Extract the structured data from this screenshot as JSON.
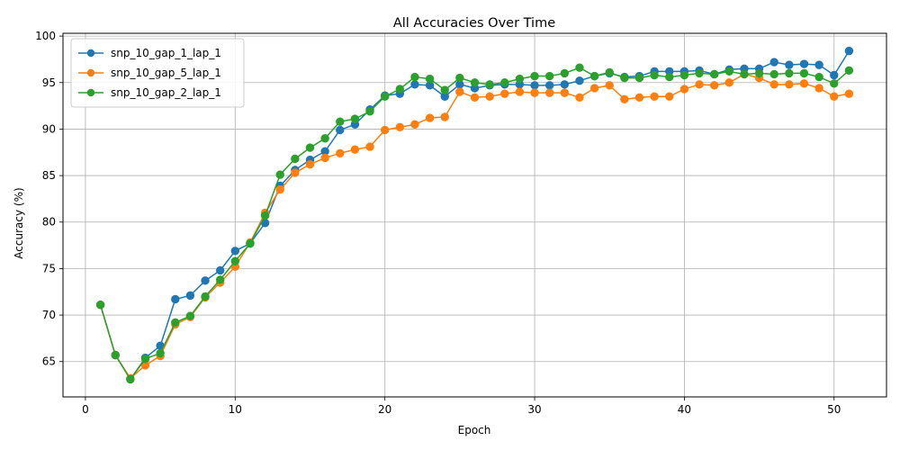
{
  "chart_data": {
    "type": "line",
    "title": "All Accuracies Over Time",
    "xlabel": "Epoch",
    "ylabel": "Accuracy (%)",
    "xlim": [
      -1.5,
      53.5
    ],
    "ylim": [
      61.2,
      100.3
    ],
    "xticks": [
      0,
      10,
      20,
      30,
      40,
      50
    ],
    "yticks": [
      65,
      70,
      75,
      80,
      85,
      90,
      95,
      100
    ],
    "grid": true,
    "legend_position": "top-left",
    "x": [
      1,
      2,
      3,
      4,
      5,
      6,
      7,
      8,
      9,
      10,
      11,
      12,
      13,
      14,
      15,
      16,
      17,
      18,
      19,
      20,
      21,
      22,
      23,
      24,
      25,
      26,
      27,
      28,
      29,
      30,
      31,
      32,
      33,
      34,
      35,
      36,
      37,
      38,
      39,
      40,
      41,
      42,
      43,
      44,
      45,
      46,
      47,
      48,
      49,
      50,
      51
    ],
    "series": [
      {
        "name": "snp_10_gap_1_lap_1",
        "color": "#1f77b4",
        "values": [
          71.1,
          65.7,
          63.1,
          65.4,
          66.7,
          71.7,
          72.1,
          73.7,
          74.8,
          76.9,
          77.7,
          79.9,
          83.9,
          85.6,
          86.7,
          87.6,
          89.9,
          90.5,
          92.1,
          93.6,
          93.8,
          94.8,
          94.7,
          93.5,
          94.8,
          94.4,
          94.7,
          94.8,
          94.8,
          94.7,
          94.7,
          94.8,
          95.2,
          95.7,
          96.0,
          95.6,
          95.7,
          96.2,
          96.2,
          96.2,
          96.3,
          95.9,
          96.4,
          96.5,
          96.5,
          97.2,
          96.9,
          97.0,
          96.9,
          95.8,
          98.4
        ]
      },
      {
        "name": "snp_10_gap_5_lap_1",
        "color": "#ff7f0e",
        "values": [
          71.1,
          65.7,
          63.2,
          64.6,
          65.6,
          69.0,
          69.8,
          71.9,
          73.5,
          75.2,
          77.8,
          81.0,
          83.5,
          85.3,
          86.2,
          86.9,
          87.4,
          87.8,
          88.1,
          89.9,
          90.2,
          90.5,
          91.2,
          91.3,
          94.0,
          93.4,
          93.5,
          93.8,
          94.0,
          93.9,
          93.9,
          93.9,
          93.4,
          94.4,
          94.7,
          93.2,
          93.4,
          93.5,
          93.5,
          94.3,
          94.8,
          94.7,
          95.0,
          95.9,
          95.5,
          94.8,
          94.8,
          94.9,
          94.4,
          93.5,
          93.8
        ]
      },
      {
        "name": "snp_10_gap_2_lap_1",
        "color": "#2ca02c",
        "values": [
          71.1,
          65.7,
          63.1,
          65.3,
          65.9,
          69.2,
          69.9,
          72.0,
          73.8,
          75.8,
          77.7,
          80.7,
          85.1,
          86.8,
          88.0,
          89.0,
          90.8,
          91.1,
          91.9,
          93.5,
          94.3,
          95.6,
          95.4,
          94.2,
          95.5,
          95.0,
          94.8,
          95.0,
          95.4,
          95.7,
          95.7,
          96.0,
          96.6,
          95.7,
          96.1,
          95.5,
          95.5,
          95.8,
          95.6,
          95.8,
          96.0,
          95.9,
          96.2,
          95.9,
          96.0,
          95.9,
          96.0,
          96.0,
          95.6,
          94.9,
          96.3
        ]
      }
    ]
  }
}
